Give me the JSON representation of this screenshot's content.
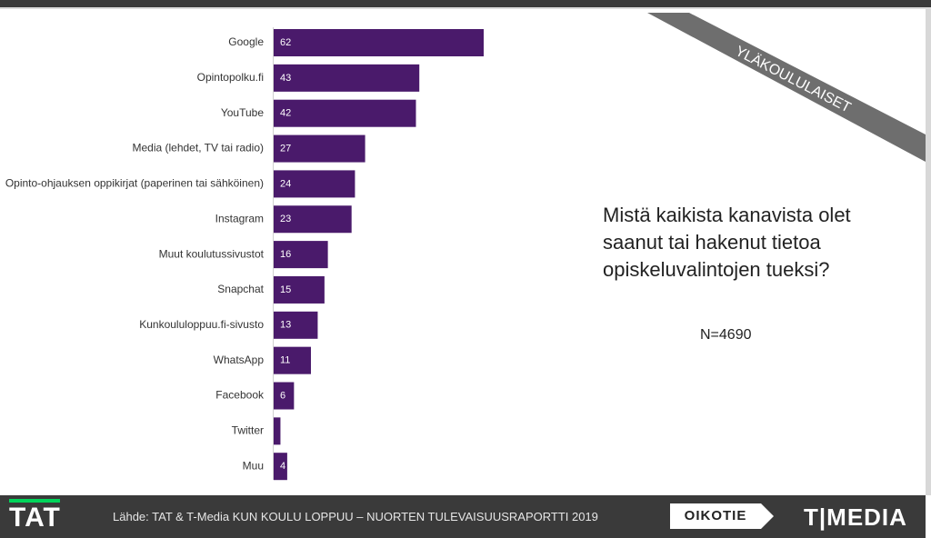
{
  "chart_data": {
    "type": "bar",
    "orientation": "horizontal",
    "categories": [
      "Google",
      "Opintopolku.fi",
      "YouTube",
      "Media (lehdet, TV tai radio)",
      "Opinto-ohjauksen oppikirjat (paperinen tai sähköinen)",
      "Instagram",
      "Muut koulutussivustot",
      "Snapchat",
      "Kunkoululoppuu.fi-sivusto",
      "WhatsApp",
      "Facebook",
      "Twitter",
      "Muu"
    ],
    "values": [
      62,
      43,
      42,
      27,
      24,
      23,
      16,
      15,
      13,
      11,
      6,
      2,
      4
    ],
    "value_labels": [
      "62",
      "43",
      "42",
      "27",
      "24",
      "23",
      "16",
      "15",
      "13",
      "11",
      "6",
      "2",
      "4"
    ],
    "xlim": [
      0,
      62
    ],
    "grid": false,
    "bar_color": "#4a1a6b",
    "title": "",
    "xlabel": "",
    "ylabel": ""
  },
  "question": "Mistä kaikista kanavista olet saanut tai hakenut tietoa opiskeluvalintojen tueksi?",
  "n_label": "N=4690",
  "corner_band": "YLÄKOULULAISET",
  "footer": {
    "tat_logo": "TAT",
    "source": "Lähde: TAT & T-Media KUN KOULU LOPPUU – NUORTEN TULEVAISUUSRAPORTTI 2019",
    "oikotie": "OIKOTIE",
    "tmedia": "T|MEDIA"
  },
  "colors": {
    "accent_green": "#00d45a",
    "footer_bg": "#3a3a3a",
    "band": "#6e6e6e"
  }
}
